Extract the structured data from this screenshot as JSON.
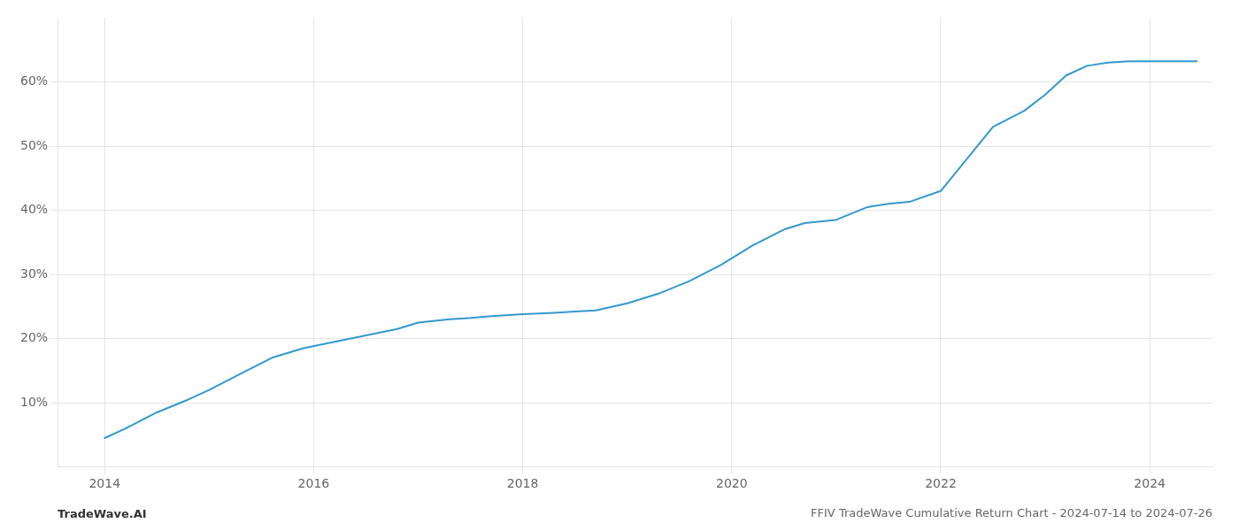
{
  "chart_data": {
    "type": "line",
    "title": "FFIV TradeWave Cumulative Return Chart - 2024-07-14 to 2024-07-26",
    "annotations": [
      "TradeWave.AI"
    ],
    "color": "#3399cc",
    "x": [
      2014.0,
      2014.2,
      2014.5,
      2014.8,
      2015.0,
      2015.3,
      2015.6,
      2015.9,
      2016.2,
      2016.5,
      2016.8,
      2017.0,
      2017.3,
      2017.5,
      2017.7,
      2018.0,
      2018.3,
      2018.5,
      2018.7,
      2019.0,
      2019.3,
      2019.6,
      2019.9,
      2020.2,
      2020.5,
      2020.7,
      2021.0,
      2021.3,
      2021.5,
      2021.7,
      2022.0,
      2022.2,
      2022.5,
      2022.8,
      2023.0,
      2023.2,
      2023.4,
      2023.6,
      2023.8,
      2024.0,
      2024.2,
      2024.45
    ],
    "values": [
      4.5,
      6.0,
      8.5,
      10.5,
      12.0,
      14.5,
      17.0,
      18.5,
      19.5,
      20.5,
      21.5,
      22.5,
      23.0,
      23.2,
      23.5,
      23.8,
      24.0,
      24.2,
      24.4,
      25.5,
      27.0,
      29.0,
      31.5,
      34.5,
      37.0,
      38.0,
      38.5,
      40.5,
      41.0,
      41.3,
      43.0,
      47.0,
      53.0,
      55.5,
      58.0,
      61.0,
      62.5,
      63.0,
      63.2,
      63.2,
      63.2,
      63.2
    ],
    "xlim": [
      2013.55,
      2024.6
    ],
    "xticks": [
      2014,
      2016,
      2018,
      2020,
      2022,
      2024
    ],
    "ylim": [
      0,
      70
    ],
    "yticks": [
      {
        "value": 10,
        "label": "10%"
      },
      {
        "value": 20,
        "label": "20%"
      },
      {
        "value": 30,
        "label": "30%"
      },
      {
        "value": 40,
        "label": "40%"
      },
      {
        "value": 50,
        "label": "50%"
      },
      {
        "value": 60,
        "label": "60%"
      }
    ],
    "grid": true
  }
}
